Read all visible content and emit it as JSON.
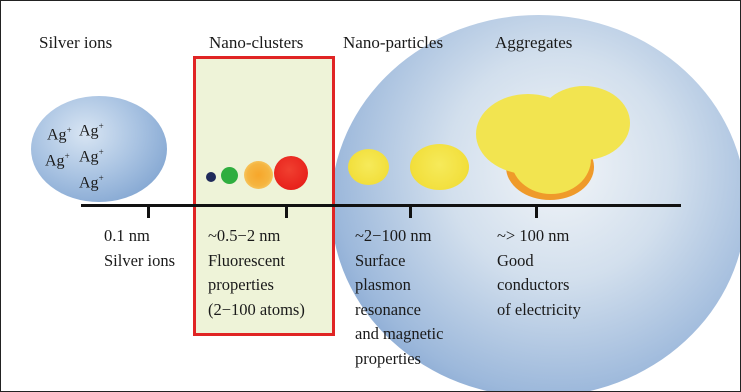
{
  "headers": {
    "silver_ions": "Silver ions",
    "nano_clusters": "Nano-clusters",
    "nano_particles": "Nano-particles",
    "aggregates": "Aggregates"
  },
  "ions": {
    "symbol": "Ag",
    "charge": "+"
  },
  "scale": [
    {
      "size": "0.1 nm",
      "lines": [
        "Silver ions"
      ]
    },
    {
      "size": "~0.5−2 nm",
      "lines": [
        "Fluorescent",
        "properties",
        "(2−100 atoms)"
      ]
    },
    {
      "size": "~2−100 nm",
      "lines": [
        "Surface",
        "plasmon",
        "resonance",
        "and magnetic",
        "properties"
      ]
    },
    {
      "size": "~> 100 nm",
      "lines": [
        "Good",
        "conductors",
        "of electricity"
      ]
    }
  ],
  "colors": {
    "highlight_border": "#e02424",
    "cluster_dots": [
      "#1f2a5a",
      "#2fae3f",
      "#f5a623",
      "#e8221c"
    ],
    "particle_yellow": "#f4e64a"
  }
}
